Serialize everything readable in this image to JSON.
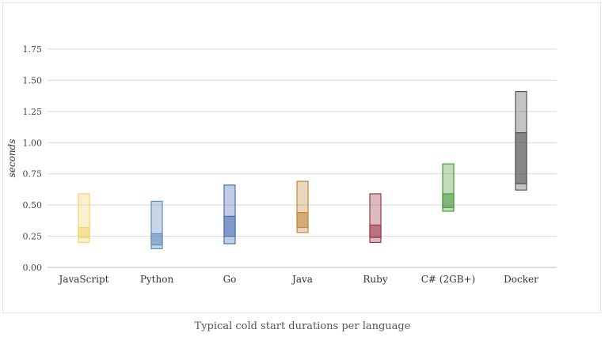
{
  "caption": "Typical cold start durations per language",
  "chart_data": {
    "type": "box",
    "ylabel": "seconds",
    "ylim": [
      0,
      1.75
    ],
    "yticks": [
      "0.00",
      "0.25",
      "0.50",
      "0.75",
      "1.00",
      "1.25",
      "1.50",
      "1.75"
    ],
    "grid": true,
    "categories": [
      "JavaScript",
      "Python",
      "Go",
      "Java",
      "Ruby",
      "C# (2GB+)",
      "Docker"
    ],
    "series": [
      {
        "low": 0.2,
        "q1": 0.24,
        "q3": 0.32,
        "high": 0.59,
        "color": "#f2d36b"
      },
      {
        "low": 0.15,
        "q1": 0.18,
        "q3": 0.27,
        "high": 0.53,
        "color": "#5f8bbd"
      },
      {
        "low": 0.19,
        "q1": 0.25,
        "q3": 0.41,
        "high": 0.66,
        "color": "#4a6fb3"
      },
      {
        "low": 0.28,
        "q1": 0.32,
        "q3": 0.44,
        "high": 0.69,
        "color": "#c08a3e"
      },
      {
        "low": 0.2,
        "q1": 0.24,
        "q3": 0.34,
        "high": 0.59,
        "color": "#9a3b47"
      },
      {
        "low": 0.45,
        "q1": 0.48,
        "q3": 0.59,
        "high": 0.83,
        "color": "#4a9a3c"
      },
      {
        "low": 0.62,
        "q1": 0.67,
        "q3": 1.08,
        "high": 1.41,
        "color": "#555555"
      }
    ]
  }
}
